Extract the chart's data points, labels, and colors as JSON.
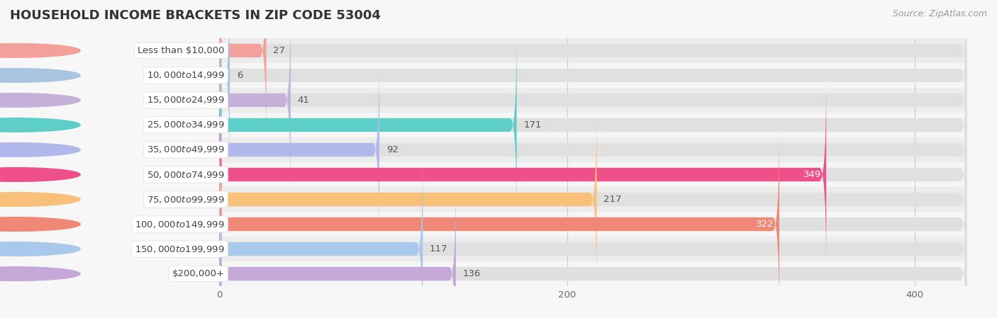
{
  "title": "HOUSEHOLD INCOME BRACKETS IN ZIP CODE 53004",
  "source": "Source: ZipAtlas.com",
  "categories": [
    "Less than $10,000",
    "$10,000 to $14,999",
    "$15,000 to $24,999",
    "$25,000 to $34,999",
    "$35,000 to $49,999",
    "$50,000 to $74,999",
    "$75,000 to $99,999",
    "$100,000 to $149,999",
    "$150,000 to $199,999",
    "$200,000+"
  ],
  "values": [
    27,
    6,
    41,
    171,
    92,
    349,
    217,
    322,
    117,
    136
  ],
  "bar_colors": [
    "#F4A09A",
    "#A8C4E0",
    "#C4B0D8",
    "#5ECFC8",
    "#B0B8EC",
    "#F0508A",
    "#F9C07A",
    "#F08878",
    "#A8C8EC",
    "#C4A8D8"
  ],
  "label_colors": [
    "#555555",
    "#555555",
    "#555555",
    "#555555",
    "#555555",
    "#ffffff",
    "#555555",
    "#ffffff",
    "#555555",
    "#555555"
  ],
  "xlim_max": 430,
  "xticks": [
    0,
    200,
    400
  ],
  "background_color": "#f7f7f7",
  "bar_bg_color": "#e8e8e8",
  "row_bg_colors": [
    "#eeeeee",
    "#f5f5f5"
  ],
  "title_fontsize": 13,
  "label_fontsize": 9.5,
  "value_fontsize": 9.5,
  "source_fontsize": 9
}
